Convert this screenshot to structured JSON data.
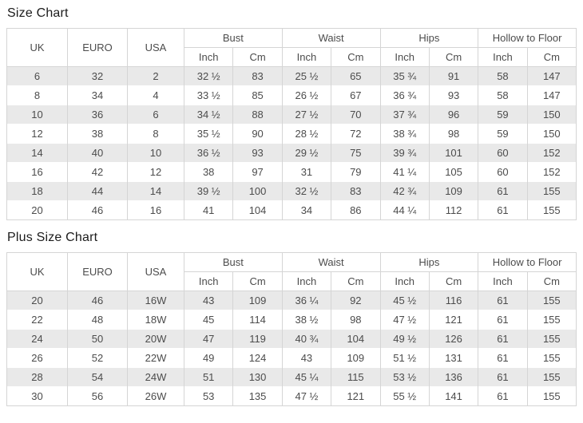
{
  "colors": {
    "row_alt_background": "#e9e9e9",
    "table_border": "#d5d5d5",
    "cell_text": "#4c4c4c",
    "title_text": "#1b1b1b",
    "page_background": "#ffffff"
  },
  "size_chart": {
    "title": "Size Chart",
    "header": {
      "uk": "UK",
      "euro": "EURO",
      "usa": "USA",
      "bust": "Bust",
      "waist": "Waist",
      "hips": "Hips",
      "hollow_to_floor": "Hollow to Floor",
      "inch": "Inch",
      "cm": "Cm"
    },
    "rows": [
      [
        "6",
        "32",
        "2",
        "32 ½",
        "83",
        "25 ½",
        "65",
        "35 ¾",
        "91",
        "58",
        "147"
      ],
      [
        "8",
        "34",
        "4",
        "33 ½",
        "85",
        "26 ½",
        "67",
        "36 ¾",
        "93",
        "58",
        "147"
      ],
      [
        "10",
        "36",
        "6",
        "34 ½",
        "88",
        "27 ½",
        "70",
        "37 ¾",
        "96",
        "59",
        "150"
      ],
      [
        "12",
        "38",
        "8",
        "35 ½",
        "90",
        "28 ½",
        "72",
        "38 ¾",
        "98",
        "59",
        "150"
      ],
      [
        "14",
        "40",
        "10",
        "36 ½",
        "93",
        "29 ½",
        "75",
        "39 ¾",
        "101",
        "60",
        "152"
      ],
      [
        "16",
        "42",
        "12",
        "38",
        "97",
        "31",
        "79",
        "41 ¼",
        "105",
        "60",
        "152"
      ],
      [
        "18",
        "44",
        "14",
        "39 ½",
        "100",
        "32 ½",
        "83",
        "42 ¾",
        "109",
        "61",
        "155"
      ],
      [
        "20",
        "46",
        "16",
        "41",
        "104",
        "34",
        "86",
        "44 ¼",
        "112",
        "61",
        "155"
      ]
    ]
  },
  "plus_size_chart": {
    "title": "Plus Size Chart",
    "header": {
      "uk": "UK",
      "euro": "EURO",
      "usa": "USA",
      "bust": "Bust",
      "waist": "Waist",
      "hips": "Hips",
      "hollow_to_floor": "Hollow to Floor",
      "inch": "Inch",
      "cm": "Cm"
    },
    "rows": [
      [
        "20",
        "46",
        "16W",
        "43",
        "109",
        "36 ¼",
        "92",
        "45 ½",
        "116",
        "61",
        "155"
      ],
      [
        "22",
        "48",
        "18W",
        "45",
        "114",
        "38 ½",
        "98",
        "47 ½",
        "121",
        "61",
        "155"
      ],
      [
        "24",
        "50",
        "20W",
        "47",
        "119",
        "40 ¾",
        "104",
        "49 ½",
        "126",
        "61",
        "155"
      ],
      [
        "26",
        "52",
        "22W",
        "49",
        "124",
        "43",
        "109",
        "51 ½",
        "131",
        "61",
        "155"
      ],
      [
        "28",
        "54",
        "24W",
        "51",
        "130",
        "45 ¼",
        "115",
        "53 ½",
        "136",
        "61",
        "155"
      ],
      [
        "30",
        "56",
        "26W",
        "53",
        "135",
        "47 ½",
        "121",
        "55 ½",
        "141",
        "61",
        "155"
      ]
    ]
  }
}
